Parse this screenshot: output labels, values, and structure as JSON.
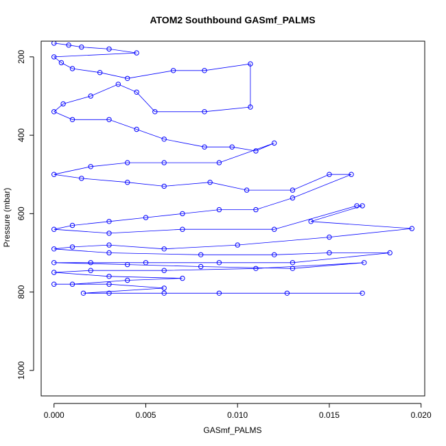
{
  "chart_data": {
    "type": "scatter",
    "title": "ATOM2 Southbound GASmf_PALMS",
    "xlabel": "GASmf_PALMS",
    "ylabel": "Pressure (mbar)",
    "xlim": [
      -0.0007,
      0.0202
    ],
    "ylim": [
      160,
      1065
    ],
    "y_reversed": true,
    "x_ticks": [
      0.0,
      0.005,
      0.01,
      0.015,
      0.02
    ],
    "x_tick_labels": [
      "0.000",
      "0.005",
      "0.010",
      "0.015",
      "0.020"
    ],
    "y_ticks": [
      200,
      400,
      600,
      800,
      1000
    ],
    "y_tick_labels": [
      "200",
      "400",
      "600",
      "800",
      "1000"
    ],
    "grid": false,
    "legend": "none",
    "color": "#0000ff",
    "marker": "open-circle",
    "connect_points": true,
    "series": [
      {
        "values": [
          [
            0.0,
            165
          ],
          [
            0.0008,
            170
          ],
          [
            0.0015,
            175
          ],
          [
            0.003,
            180
          ],
          [
            0.0045,
            190
          ],
          [
            0.0,
            200
          ],
          [
            0.0004,
            215
          ],
          [
            0.001,
            230
          ],
          [
            0.0025,
            240
          ],
          [
            0.004,
            255
          ],
          [
            0.0065,
            235
          ],
          [
            0.0082,
            235
          ],
          [
            0.0107,
            218
          ],
          [
            0.0107,
            328
          ],
          [
            0.0082,
            340
          ],
          [
            0.0055,
            340
          ],
          [
            0.0045,
            290
          ],
          [
            0.0035,
            270
          ],
          [
            0.002,
            300
          ],
          [
            0.0005,
            320
          ],
          [
            0.0,
            340
          ],
          [
            0.001,
            360
          ],
          [
            0.003,
            360
          ],
          [
            0.0045,
            385
          ],
          [
            0.006,
            410
          ],
          [
            0.0082,
            430
          ],
          [
            0.0097,
            430
          ],
          [
            0.011,
            440
          ],
          [
            0.012,
            420
          ],
          [
            0.009,
            470
          ],
          [
            0.006,
            470
          ],
          [
            0.004,
            470
          ],
          [
            0.002,
            480
          ],
          [
            0.0,
            500
          ],
          [
            0.0015,
            510
          ],
          [
            0.004,
            520
          ],
          [
            0.006,
            530
          ],
          [
            0.0085,
            520
          ],
          [
            0.0105,
            540
          ],
          [
            0.013,
            540
          ],
          [
            0.015,
            500
          ],
          [
            0.0162,
            500
          ],
          [
            0.013,
            560
          ],
          [
            0.011,
            590
          ],
          [
            0.009,
            590
          ],
          [
            0.007,
            600
          ],
          [
            0.005,
            610
          ],
          [
            0.003,
            620
          ],
          [
            0.001,
            630
          ],
          [
            0.0,
            640
          ],
          [
            0.003,
            650
          ],
          [
            0.007,
            640
          ],
          [
            0.012,
            640
          ],
          [
            0.0165,
            580
          ],
          [
            0.0168,
            580
          ],
          [
            0.014,
            620
          ],
          [
            0.0195,
            638
          ],
          [
            0.015,
            660
          ],
          [
            0.01,
            680
          ],
          [
            0.006,
            690
          ],
          [
            0.003,
            680
          ],
          [
            0.001,
            685
          ],
          [
            0.0,
            690
          ],
          [
            0.003,
            700
          ],
          [
            0.008,
            705
          ],
          [
            0.012,
            705
          ],
          [
            0.015,
            700
          ],
          [
            0.0183,
            700
          ],
          [
            0.013,
            725
          ],
          [
            0.009,
            725
          ],
          [
            0.005,
            725
          ],
          [
            0.002,
            725
          ],
          [
            0.0,
            725
          ],
          [
            0.004,
            730
          ],
          [
            0.008,
            735
          ],
          [
            0.013,
            740
          ],
          [
            0.0169,
            725
          ],
          [
            0.011,
            740
          ],
          [
            0.006,
            745
          ],
          [
            0.002,
            745
          ],
          [
            0.0,
            750
          ],
          [
            0.003,
            760
          ],
          [
            0.007,
            765
          ],
          [
            0.004,
            770
          ],
          [
            0.001,
            780
          ],
          [
            0.0,
            780
          ],
          [
            0.003,
            780
          ],
          [
            0.006,
            790
          ],
          [
            0.0016,
            803
          ],
          [
            0.003,
            803
          ],
          [
            0.006,
            803
          ],
          [
            0.009,
            803
          ],
          [
            0.0127,
            803
          ],
          [
            0.0168,
            803
          ]
        ]
      }
    ]
  }
}
